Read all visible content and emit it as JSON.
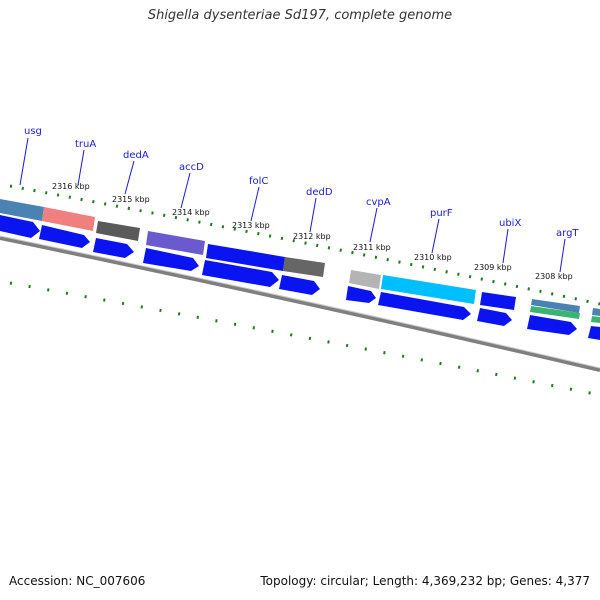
{
  "title": "Shigella dysenteriae Sd197, complete genome",
  "footer": {
    "accession": "Accession: NC_007606",
    "summary": "Topology: circular; Length: 4,369,232 bp; Genes: 4,377"
  },
  "colors": {
    "background": "#ffffff",
    "backbone": "#7f7f7f",
    "cds": "#0a14f0",
    "tick": "#1f7a1f",
    "label": "#1a1ad0"
  },
  "genes": [
    "usg",
    "truA",
    "dedA",
    "accD",
    "folC",
    "dedD",
    "cvpA",
    "purF",
    "ubiX",
    "argT"
  ],
  "kbp_labels": [
    "2316 kbp",
    "2315 kbp",
    "2314 kbp",
    "2313 kbp",
    "2312 kbp",
    "2311 kbp",
    "2310 kbp",
    "2309 kbp",
    "2308 kbp"
  ]
}
